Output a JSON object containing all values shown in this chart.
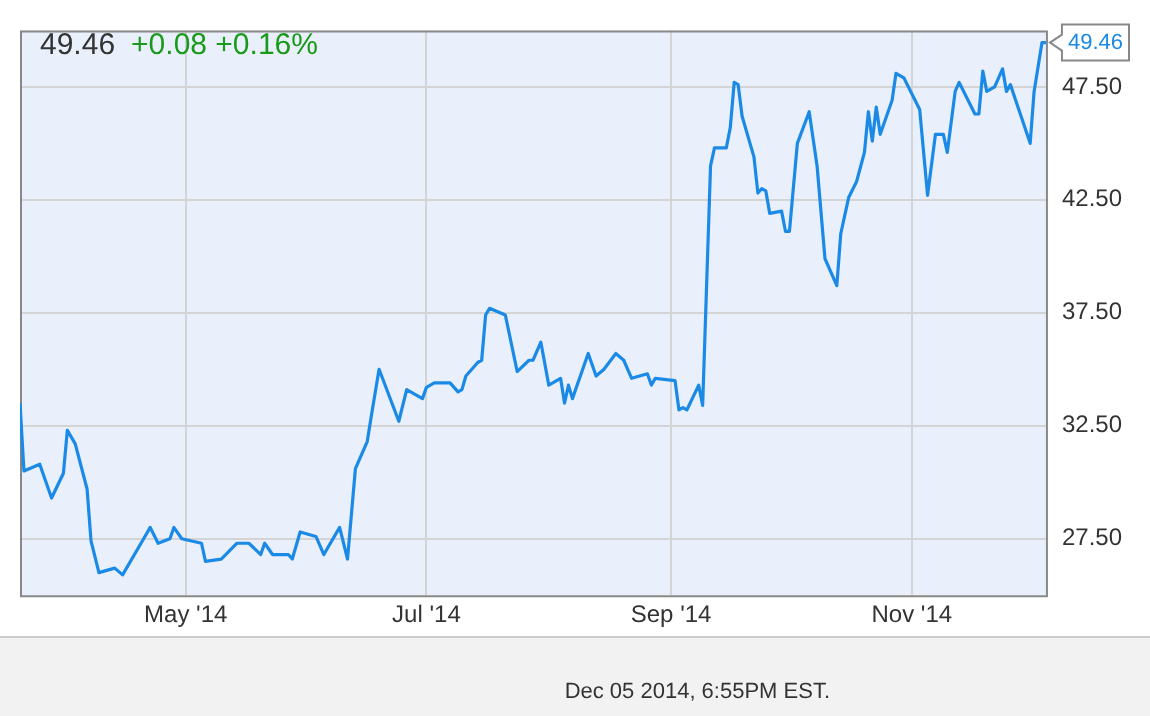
{
  "chart_data": {
    "type": "line",
    "title": "49.46",
    "subtitle": "+0.08 +0.16%",
    "x": [
      "2014-03-20",
      "2014-03-21",
      "2014-03-25",
      "2014-03-26",
      "2014-03-28",
      "2014-03-31",
      "2014-04-01",
      "2014-04-03",
      "2014-04-06",
      "2014-04-07",
      "2014-04-09",
      "2014-04-13",
      "2014-04-15",
      "2014-04-20",
      "2014-04-22",
      "2014-04-24",
      "2014-04-27",
      "2014-04-28",
      "2014-04-30",
      "2014-05-05",
      "2014-05-06",
      "2014-05-10",
      "2014-05-14",
      "2014-05-17",
      "2014-05-20",
      "2014-05-21",
      "2014-05-23",
      "2014-05-27",
      "2014-05-28",
      "2014-05-30",
      "2014-06-03",
      "2014-06-05",
      "2014-06-09",
      "2014-06-11",
      "2014-06-13",
      "2014-06-16",
      "2014-06-17",
      "2014-06-19",
      "2014-06-24",
      "2014-06-26",
      "2014-06-30",
      "2014-07-01",
      "2014-07-03",
      "2014-07-07",
      "2014-07-09",
      "2014-07-10",
      "2014-07-11",
      "2014-07-14",
      "2014-07-15",
      "2014-07-16",
      "2014-07-17",
      "2014-07-21",
      "2014-07-24",
      "2014-07-27",
      "2014-07-28",
      "2014-07-30",
      "2014-08-01",
      "2014-08-04",
      "2014-08-05",
      "2014-08-06",
      "2014-08-07",
      "2014-08-11",
      "2014-08-13",
      "2014-08-15",
      "2014-08-18",
      "2014-08-20",
      "2014-08-22",
      "2014-08-26",
      "2014-08-27",
      "2014-08-28",
      "2014-09-02",
      "2014-09-03",
      "2014-09-04",
      "2014-09-05",
      "2014-09-08",
      "2014-09-09",
      "2014-09-11",
      "2014-09-12",
      "2014-09-15",
      "2014-09-16",
      "2014-09-17",
      "2014-09-18",
      "2014-09-19",
      "2014-09-22",
      "2014-09-23",
      "2014-09-24",
      "2014-09-25",
      "2014-09-26",
      "2014-09-29",
      "2014-09-30",
      "2014-10-01",
      "2014-10-03",
      "2014-10-06",
      "2014-10-08",
      "2014-10-10",
      "2014-10-13",
      "2014-10-14",
      "2014-10-16",
      "2014-10-18",
      "2014-10-20",
      "2014-10-21",
      "2014-10-22",
      "2014-10-23",
      "2014-10-24",
      "2014-10-27",
      "2014-10-28",
      "2014-10-30",
      "2014-11-03",
      "2014-11-05",
      "2014-11-07",
      "2014-11-09",
      "2014-11-10",
      "2014-11-12",
      "2014-11-13",
      "2014-11-17",
      "2014-11-18",
      "2014-11-19",
      "2014-11-20",
      "2014-11-22",
      "2014-11-24",
      "2014-11-25",
      "2014-11-26",
      "2014-12-01",
      "2014-12-02",
      "2014-12-04",
      "2014-12-05"
    ],
    "series": [
      {
        "color": "#1a8ae6",
        "values": [
          33.5,
          30.5,
          30.8,
          30.3,
          29.3,
          30.4,
          32.3,
          31.7,
          29.7,
          27.4,
          26.0,
          26.2,
          25.9,
          27.4,
          28.0,
          27.3,
          27.5,
          28.0,
          27.5,
          27.3,
          26.5,
          26.6,
          27.3,
          27.3,
          26.8,
          27.3,
          26.8,
          26.8,
          26.6,
          27.8,
          27.6,
          26.8,
          28.0,
          26.6,
          30.6,
          31.8,
          32.9,
          35.0,
          32.7,
          34.1,
          33.7,
          34.2,
          34.4,
          34.4,
          34.0,
          34.1,
          34.7,
          35.3,
          35.4,
          37.4,
          37.7,
          37.4,
          34.9,
          35.4,
          35.4,
          36.2,
          34.3,
          34.6,
          33.5,
          34.3,
          33.7,
          35.7,
          34.7,
          35.0,
          35.7,
          35.4,
          34.6,
          34.8,
          34.3,
          34.6,
          34.5,
          33.2,
          33.3,
          33.2,
          34.3,
          33.4,
          44.0,
          44.8,
          44.8,
          45.7,
          47.7,
          47.6,
          46.2,
          44.4,
          42.8,
          43.0,
          42.9,
          41.9,
          42.0,
          41.1,
          41.1,
          45.0,
          46.4,
          44.0,
          39.9,
          38.7,
          41.0,
          42.6,
          43.3,
          44.6,
          46.4,
          45.1,
          46.6,
          45.4,
          46.9,
          48.1,
          47.9,
          46.5,
          42.7,
          45.4,
          45.4,
          44.6,
          47.3,
          47.7,
          46.3,
          46.3,
          48.2,
          47.3,
          47.5,
          48.3,
          47.3,
          47.6,
          45.0,
          47.3,
          49.46,
          49.46
        ]
      }
    ],
    "xlim": [
      "2014-03-20",
      "2014-12-05"
    ],
    "xticks": [
      {
        "value": "2014-05-01",
        "label": "May '14"
      },
      {
        "value": "2014-07-01",
        "label": "Jul '14"
      },
      {
        "value": "2014-09-01",
        "label": "Sep '14"
      },
      {
        "value": "2014-11-01",
        "label": "Nov '14"
      }
    ],
    "ylim": [
      25,
      50
    ],
    "yticks": [
      {
        "value": 27.5,
        "label": "27.50"
      },
      {
        "value": 32.5,
        "label": "32.50"
      },
      {
        "value": 37.5,
        "label": "37.50"
      },
      {
        "value": 42.5,
        "label": "42.50"
      },
      {
        "value": 47.5,
        "label": "47.50"
      }
    ],
    "grid": true,
    "marker": "none",
    "line_style": "solid",
    "annotations": [
      {
        "text": "49.46",
        "x": "2014-12-05",
        "y": 49.46
      },
      "Dec 05 2014, 6:55PM EST."
    ]
  }
}
